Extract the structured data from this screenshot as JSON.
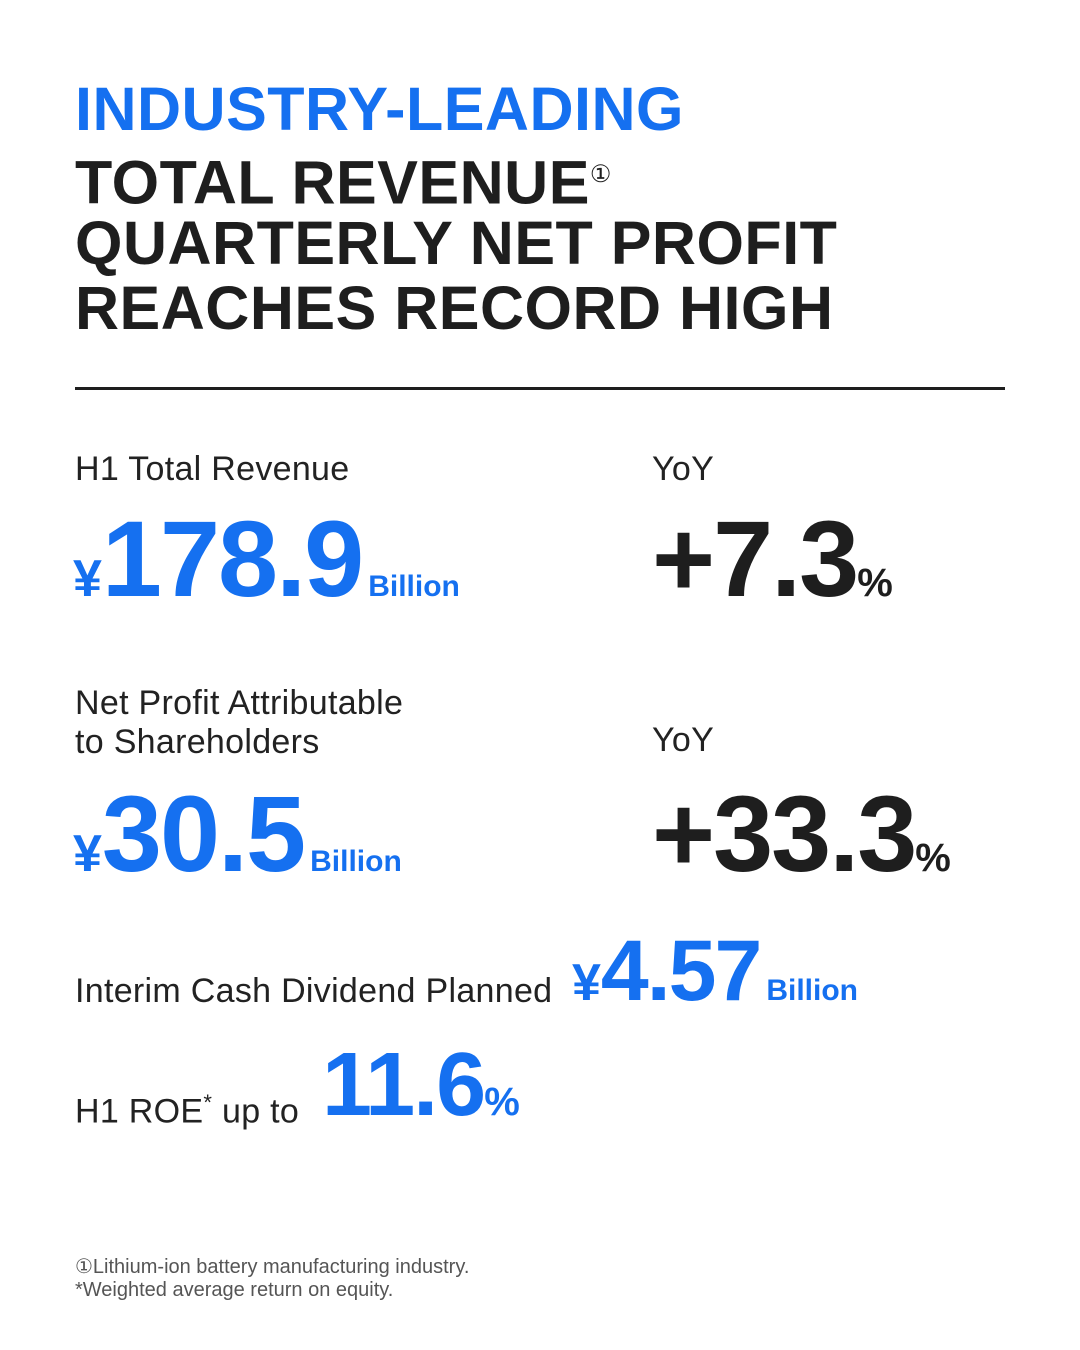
{
  "headline": {
    "line1": "INDUSTRY-LEADING",
    "line2": "TOTAL REVENUE",
    "line2_mark": "①",
    "line3": "QUARTERLY NET PROFIT",
    "line4": "REACHES RECORD HIGH"
  },
  "revenue": {
    "label": "H1 Total Revenue",
    "currency": "¥",
    "value": "178.9",
    "unit": "Billion",
    "yoy_label": "YoY",
    "yoy_value": "+7.3",
    "yoy_unit": "%"
  },
  "net_profit": {
    "label_line1": "Net Profit Attributable",
    "label_line2": "to Shareholders",
    "currency": "¥",
    "value": "30.5",
    "unit": "Billion",
    "yoy_label": "YoY",
    "yoy_value": "+33.3",
    "yoy_unit": "%"
  },
  "dividend": {
    "label": "Interim Cash Dividend Planned",
    "currency": "¥",
    "value": "4.57",
    "unit": "Billion"
  },
  "roe": {
    "label_prefix": "H1 ROE",
    "label_mark": "*",
    "label_suffix": "up to",
    "value": "11.6",
    "unit": "%"
  },
  "footnotes": {
    "note1": "①Lithium-ion battery manufacturing industry.",
    "note2": "*Weighted average return on equity."
  },
  "colors": {
    "accent": "#1570f0",
    "text": "#1e1e1e"
  }
}
